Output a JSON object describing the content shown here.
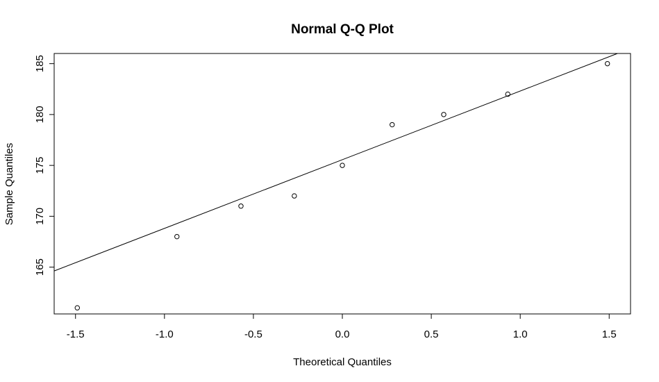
{
  "chart_data": {
    "type": "scatter",
    "title": "Normal Q-Q Plot",
    "xlabel": "Theoretical Quantiles",
    "ylabel": "Sample Quantiles",
    "xlim": [
      -1.62,
      1.62
    ],
    "ylim": [
      160.4,
      186.0
    ],
    "x_ticks": [
      -1.5,
      -1.0,
      -0.5,
      0.0,
      0.5,
      1.0,
      1.5
    ],
    "x_tick_labels": [
      "-1.5",
      "-1.0",
      "-0.5",
      "0.0",
      "0.5",
      "1.0",
      "1.5"
    ],
    "y_ticks": [
      165,
      170,
      175,
      180,
      185
    ],
    "y_tick_labels": [
      "165",
      "170",
      "175",
      "180",
      "185"
    ],
    "grid": false,
    "points": [
      {
        "x": -1.49,
        "y": 161
      },
      {
        "x": -0.93,
        "y": 168
      },
      {
        "x": -0.57,
        "y": 171
      },
      {
        "x": -0.27,
        "y": 172
      },
      {
        "x": 0.0,
        "y": 175
      },
      {
        "x": 0.28,
        "y": 179
      },
      {
        "x": 0.57,
        "y": 180
      },
      {
        "x": 0.93,
        "y": 182
      },
      {
        "x": 1.49,
        "y": 185
      }
    ],
    "reference_line": {
      "intercept": 175.56,
      "slope": 6.75
    },
    "marker": "open-circle",
    "colors": {
      "points": "#000000",
      "line": "#000000",
      "axes": "#000000"
    }
  }
}
